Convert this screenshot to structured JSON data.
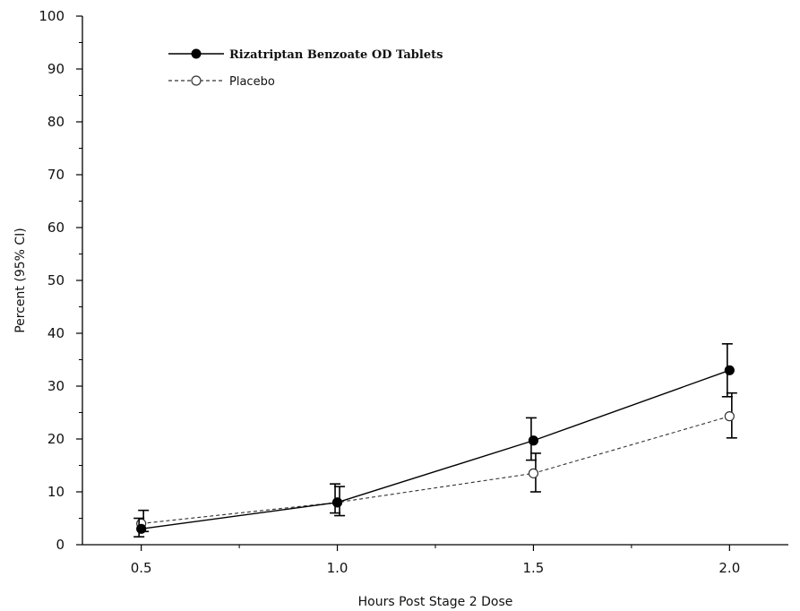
{
  "chart_data": {
    "type": "line",
    "xlabel": "Hours Post Stage 2 Dose",
    "ylabel": "Percent (95% CI)",
    "x": [
      0.5,
      1.0,
      1.5,
      2.0
    ],
    "x_tick_labels": [
      "0.5",
      "1.0",
      "1.5",
      "2.0"
    ],
    "xlim": [
      0.35,
      2.15
    ],
    "ylim": [
      0,
      100
    ],
    "y_ticks": [
      0,
      10,
      20,
      30,
      40,
      50,
      60,
      70,
      80,
      90,
      100
    ],
    "y_tick_labels": [
      "0",
      "10",
      "20",
      "30",
      "40",
      "50",
      "60",
      "70",
      "80",
      "90",
      "100"
    ],
    "grid": false,
    "legend_position": "top-left",
    "series": [
      {
        "name": "Rizatriptan Benzoate OD Tablets",
        "marker": "filled-circle",
        "line_style": "solid",
        "color": "#000000",
        "values": [
          3,
          8,
          19.7,
          33
        ],
        "ci_lower": [
          1.5,
          6,
          16,
          28
        ],
        "ci_upper": [
          5,
          11.5,
          24,
          38
        ]
      },
      {
        "name": "Placebo",
        "marker": "open-circle",
        "line_style": "dashed",
        "color": "#000000",
        "values": [
          4,
          8,
          13.5,
          24.3
        ],
        "ci_lower": [
          2.5,
          5.5,
          10,
          20.2
        ],
        "ci_upper": [
          6.5,
          11,
          17.3,
          28.7
        ]
      }
    ]
  }
}
